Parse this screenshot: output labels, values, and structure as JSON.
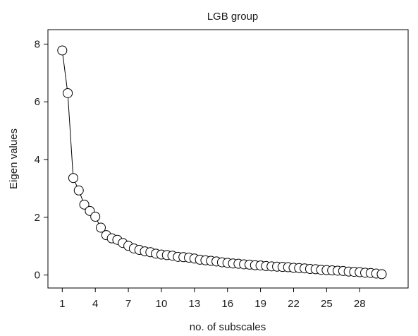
{
  "chart_data": {
    "type": "line",
    "title": "LGB group",
    "xlabel": "no. of subscales",
    "ylabel": "Eigen values",
    "xlim": [
      -0.3,
      32.4
    ],
    "ylim": [
      -0.45,
      8.5
    ],
    "x_ticks": [
      1,
      4,
      7,
      10,
      13,
      16,
      19,
      22,
      25,
      28
    ],
    "y_ticks": [
      0,
      2,
      4,
      6,
      8
    ],
    "grid": false,
    "legend": "none",
    "marker": "open-circle",
    "colors": {
      "line": "#000000",
      "marker_fill": "#ffffff",
      "marker_edge": "#000000",
      "axes": "#000000"
    },
    "series": [
      {
        "x": [
          1,
          1.5,
          2,
          2.5,
          3,
          3.5,
          4,
          4.5,
          5,
          5.5,
          6,
          6.5,
          7,
          7.5,
          8,
          8.5,
          9,
          9.5,
          10,
          10.5,
          11,
          11.5,
          12,
          12.5,
          13,
          13.5,
          14,
          14.5,
          15,
          15.5,
          16,
          16.5,
          17,
          17.5,
          18,
          18.5,
          19,
          19.5,
          20,
          20.5,
          21,
          21.5,
          22,
          22.5,
          23,
          23.5,
          24,
          24.5,
          25,
          25.5,
          26,
          26.5,
          27,
          27.5,
          28,
          28.5,
          29,
          29.5,
          30
        ],
        "y": [
          7.78,
          6.3,
          3.36,
          2.93,
          2.44,
          2.22,
          2.02,
          1.64,
          1.38,
          1.27,
          1.22,
          1.11,
          1.01,
          0.92,
          0.87,
          0.82,
          0.79,
          0.74,
          0.71,
          0.69,
          0.67,
          0.63,
          0.62,
          0.6,
          0.57,
          0.53,
          0.51,
          0.49,
          0.47,
          0.44,
          0.42,
          0.4,
          0.39,
          0.37,
          0.36,
          0.34,
          0.33,
          0.31,
          0.3,
          0.29,
          0.28,
          0.27,
          0.25,
          0.24,
          0.23,
          0.21,
          0.2,
          0.18,
          0.17,
          0.16,
          0.15,
          0.14,
          0.12,
          0.11,
          0.1,
          0.08,
          0.07,
          0.05,
          0.03
        ]
      }
    ]
  }
}
